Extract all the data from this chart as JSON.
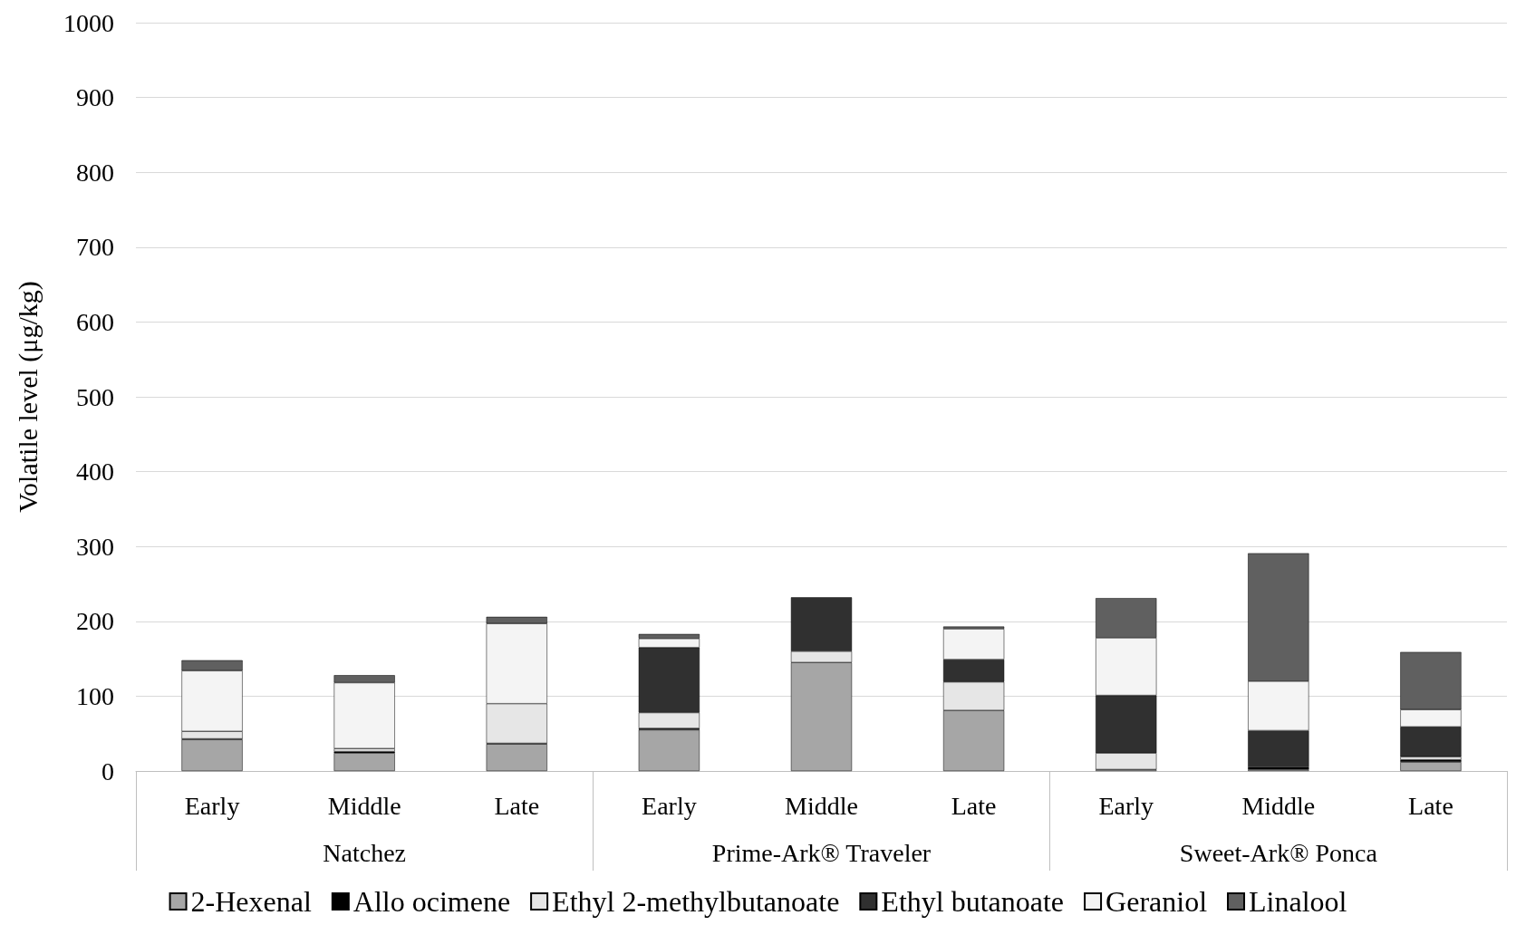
{
  "chart_data": {
    "type": "bar",
    "stacked": true,
    "ylabel": "Volatile level (μg/kg)",
    "categories": [
      "Early",
      "Middle",
      "Late",
      "Early",
      "Middle",
      "Late",
      "Early",
      "Middle",
      "Late"
    ],
    "annotations": [
      "Natchez",
      "Prime-Ark® Traveler",
      "Sweet-Ark® Ponca"
    ],
    "series": [
      {
        "name": "2-Hexenal",
        "color": "#a6a6a6",
        "values": [
          42,
          24,
          36,
          55,
          145,
          81,
          2,
          2,
          12
        ]
      },
      {
        "name": "Allo ocimene",
        "color": "#000000",
        "values": [
          1,
          2,
          1,
          2,
          0,
          null,
          0,
          3,
          3
        ]
      },
      {
        "name": "Ethyl 2-methylbutanoate",
        "color": "#e6e6e6",
        "values": [
          10,
          4,
          53,
          21,
          15,
          38,
          22,
          0,
          4
        ]
      },
      {
        "name": "Ethyl butanoate",
        "color": "#303030",
        "values": [
          0,
          0,
          0,
          87,
          72,
          30,
          77,
          49,
          40
        ]
      },
      {
        "name": "Geraniol",
        "color": "#f4f4f4",
        "values": [
          81,
          88,
          107,
          12,
          0,
          41,
          77,
          66,
          23
        ]
      },
      {
        "name": "Linalool",
        "color": "#606060",
        "values": [
          14,
          10,
          9,
          6,
          0,
          3,
          53,
          171,
          77
        ]
      }
    ],
    "ylim": [
      0,
      1000
    ],
    "yticks": [
      0,
      100,
      200,
      300,
      400,
      500,
      600,
      700,
      800,
      900,
      1000
    ],
    "grid": "y",
    "legend": "bottom"
  }
}
